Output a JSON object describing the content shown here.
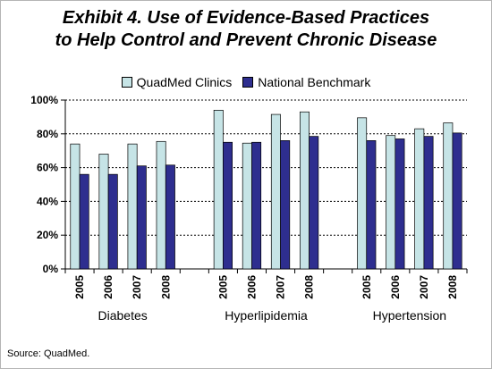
{
  "title_line1": "Exhibit 4. Use of Evidence-Based Practices",
  "title_line2": "to Help Control and Prevent Chronic Disease",
  "source": "Source: QuadMed.",
  "colors": {
    "quadmed": "#c6e4e6",
    "benchmark": "#2e2e8f",
    "gridline": "#000000"
  },
  "chart_data": {
    "type": "bar",
    "title": "",
    "xlabel": "",
    "ylabel": "",
    "ylim": [
      0,
      100
    ],
    "y_tick_labels": [
      "0%",
      "20%",
      "40%",
      "60%",
      "80%",
      "100%"
    ],
    "grid": true,
    "legend_position": "top",
    "groups": [
      {
        "label": "Diabetes",
        "categories": [
          "2005",
          "2006",
          "2007",
          "2008"
        ]
      },
      {
        "label": "Hyperlipidemia",
        "categories": [
          "2005",
          "2006",
          "2007",
          "2008"
        ]
      },
      {
        "label": "Hypertension",
        "categories": [
          "2005",
          "2006",
          "2007",
          "2008"
        ]
      }
    ],
    "series": [
      {
        "name": "QuadMed Clinics",
        "values": [
          74,
          68,
          74,
          75.5,
          94,
          74.5,
          91.5,
          93,
          89.5,
          79,
          83,
          86.5
        ]
      },
      {
        "name": "National Benchmark",
        "values": [
          56,
          56,
          61,
          61.5,
          75,
          75,
          76,
          78.5,
          76,
          77,
          78.5,
          80.5
        ]
      }
    ]
  }
}
